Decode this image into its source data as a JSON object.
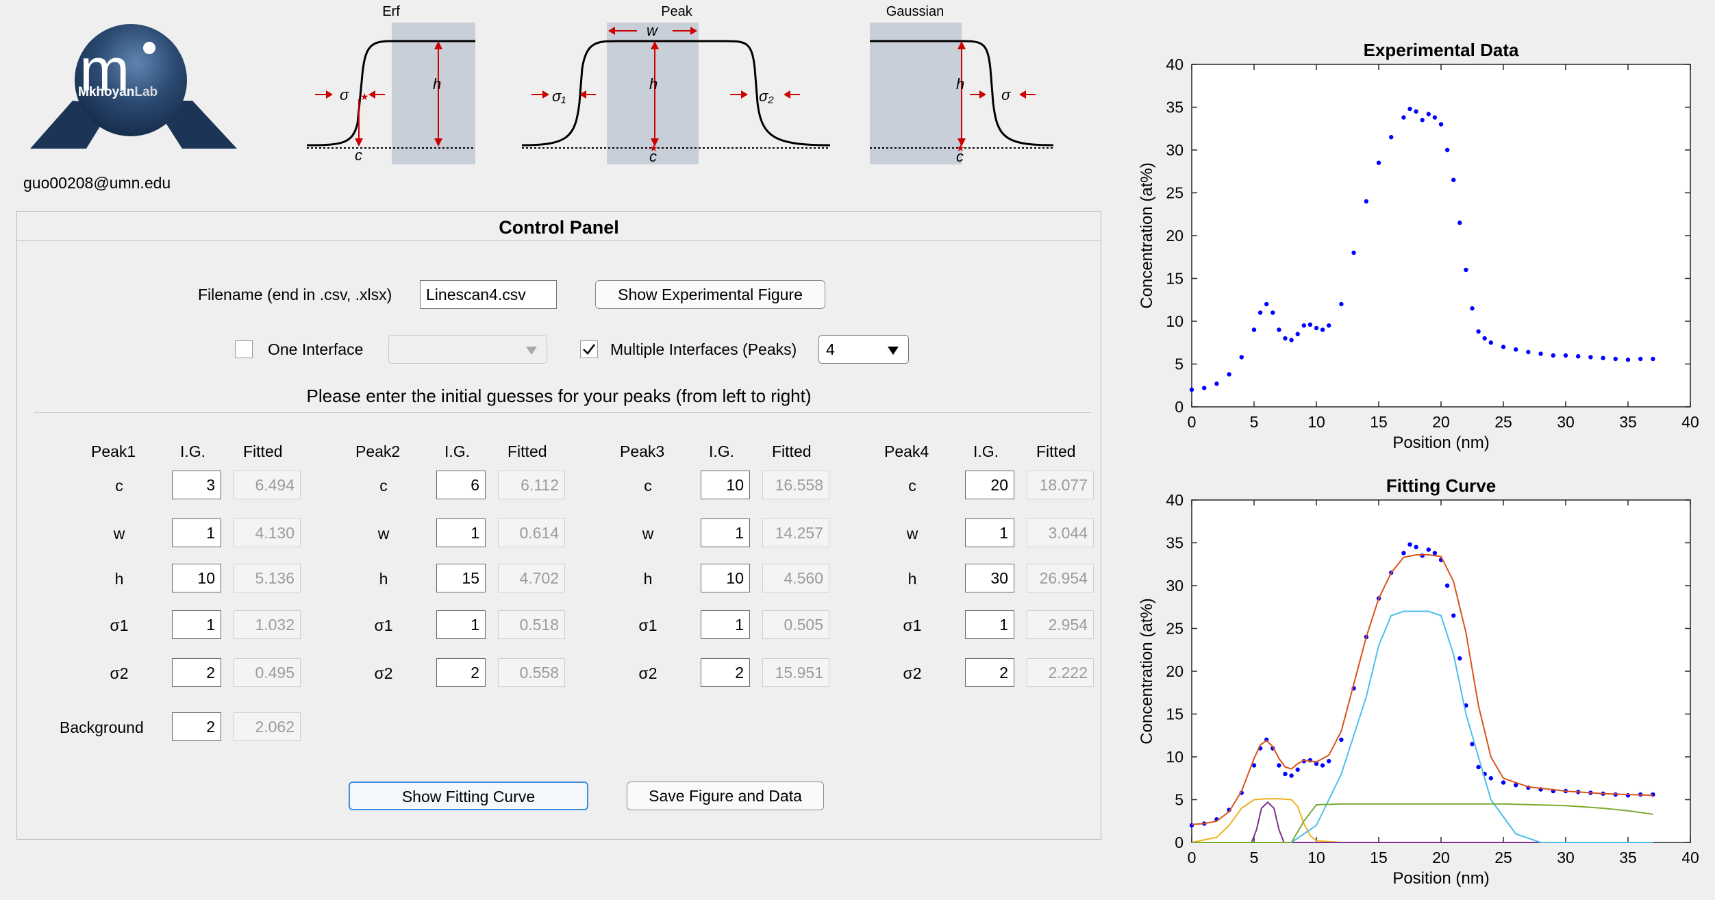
{
  "header": {
    "logo_text_m": "m",
    "logo_text_mkhoyan": "Mkhoyan",
    "logo_text_lab": "Lab",
    "email": "guo00208@umn.edu"
  },
  "diagrams": {
    "erf": {
      "title": "Erf",
      "labels": [
        "σ",
        "h",
        "c"
      ]
    },
    "peak": {
      "title": "Peak",
      "labels": [
        "w",
        "σ₁",
        "h",
        "σ₂",
        "c"
      ]
    },
    "gaussian": {
      "title": "Gaussian",
      "labels": [
        "h",
        "σ",
        "c"
      ]
    }
  },
  "panel": {
    "title": "Control Panel",
    "filename_label": "Filename (end in .csv, .xlsx)",
    "filename_value": "Linescan4.csv",
    "show_experimental_button": "Show Experimental Figure",
    "one_interface_label": "One Interface",
    "one_interface_checked": false,
    "multiple_interfaces_label": "Multiple Interfaces (Peaks)",
    "multiple_interfaces_checked": true,
    "peaks_count": "4",
    "instructions": "Please enter the initial guesses for your peaks (from left to right)",
    "col_ig": "I.G.",
    "col_fitted": "Fitted",
    "param_labels": [
      "c",
      "w",
      "h",
      "σ1",
      "σ2"
    ],
    "peaks": [
      {
        "name": "Peak1",
        "ig": [
          "3",
          "1",
          "10",
          "1",
          "2"
        ],
        "fitted": [
          "6.494",
          "4.130",
          "5.136",
          "1.032",
          "0.495"
        ]
      },
      {
        "name": "Peak2",
        "ig": [
          "6",
          "1",
          "15",
          "1",
          "2"
        ],
        "fitted": [
          "6.112",
          "0.614",
          "4.702",
          "0.518",
          "0.558"
        ]
      },
      {
        "name": "Peak3",
        "ig": [
          "10",
          "1",
          "10",
          "1",
          "2"
        ],
        "fitted": [
          "16.558",
          "14.257",
          "4.560",
          "0.505",
          "15.951"
        ]
      },
      {
        "name": "Peak4",
        "ig": [
          "20",
          "1",
          "30",
          "1",
          "2"
        ],
        "fitted": [
          "18.077",
          "3.044",
          "26.954",
          "2.954",
          "2.222"
        ]
      }
    ],
    "background_label": "Background",
    "background_ig": "2",
    "background_fitted": "2.062",
    "show_fitting_button": "Show Fitting Curve",
    "save_button": "Save Figure and Data"
  },
  "chart_data": [
    {
      "type": "scatter",
      "title": "Experimental Data",
      "xlabel": "Position (nm)",
      "ylabel": "Concentration (at%)",
      "xlim": [
        0,
        40
      ],
      "ylim": [
        0,
        40
      ],
      "xticks": [
        0,
        5,
        10,
        15,
        20,
        25,
        30,
        35,
        40
      ],
      "yticks": [
        0,
        5,
        10,
        15,
        20,
        25,
        30,
        35,
        40
      ],
      "series": [
        {
          "color": "#0000ff",
          "marker": "dot",
          "x": [
            0,
            1,
            2,
            3,
            4,
            5,
            5.5,
            6,
            6.5,
            7,
            7.5,
            8,
            8.5,
            9,
            9.5,
            10,
            10.5,
            11,
            12,
            13,
            14,
            15,
            16,
            17,
            17.5,
            18,
            18.5,
            19,
            19.5,
            20,
            20.5,
            21,
            21.5,
            22,
            22.5,
            23,
            23.5,
            24,
            25,
            26,
            27,
            28,
            29,
            30,
            31,
            32,
            33,
            34,
            35,
            36,
            37
          ],
          "y": [
            2,
            2.2,
            2.7,
            3.8,
            5.8,
            9,
            11,
            12,
            11,
            9,
            8,
            7.8,
            8.5,
            9.5,
            9.6,
            9.2,
            9.0,
            9.5,
            12,
            18,
            24,
            28.5,
            31.5,
            33.8,
            34.8,
            34.5,
            33.5,
            34.2,
            33.8,
            33,
            30,
            26.5,
            21.5,
            16,
            11.5,
            8.8,
            8,
            7.5,
            7,
            6.7,
            6.4,
            6.2,
            6.0,
            6.0,
            5.9,
            5.8,
            5.7,
            5.6,
            5.5,
            5.6,
            5.6
          ]
        }
      ]
    },
    {
      "type": "line",
      "title": "Fitting Curve",
      "xlabel": "Position (nm)",
      "ylabel": "Concentration (at%)",
      "xlim": [
        0,
        40
      ],
      "ylim": [
        0,
        40
      ],
      "xticks": [
        0,
        5,
        10,
        15,
        20,
        25,
        30,
        35,
        40
      ],
      "yticks": [
        0,
        5,
        10,
        15,
        20,
        25,
        30,
        35,
        40
      ],
      "series": [
        {
          "color": "#0000ff",
          "marker": "dot",
          "x": [
            0,
            1,
            2,
            3,
            4,
            5,
            5.5,
            6,
            6.5,
            7,
            7.5,
            8,
            8.5,
            9,
            9.5,
            10,
            10.5,
            11,
            12,
            13,
            14,
            15,
            16,
            17,
            17.5,
            18,
            18.5,
            19,
            19.5,
            20,
            20.5,
            21,
            21.5,
            22,
            22.5,
            23,
            23.5,
            24,
            25,
            26,
            27,
            28,
            29,
            30,
            31,
            32,
            33,
            34,
            35,
            36,
            37
          ],
          "y": [
            2,
            2.2,
            2.7,
            3.8,
            5.8,
            9,
            11,
            12,
            11,
            9,
            8,
            7.8,
            8.5,
            9.5,
            9.6,
            9.2,
            9.0,
            9.5,
            12,
            18,
            24,
            28.5,
            31.5,
            33.8,
            34.8,
            34.5,
            33.5,
            34.2,
            33.8,
            33,
            30,
            26.5,
            21.5,
            16,
            11.5,
            8.8,
            8,
            7.5,
            7,
            6.7,
            6.4,
            6.2,
            6.0,
            6.0,
            5.9,
            5.8,
            5.7,
            5.6,
            5.5,
            5.6,
            5.6
          ]
        },
        {
          "color": "#d95319",
          "x": [
            0,
            1,
            2,
            3,
            4,
            5,
            5.5,
            6,
            6.5,
            7,
            7.5,
            8,
            8.5,
            9,
            10,
            11,
            12,
            13,
            14,
            15,
            16,
            17,
            18,
            19,
            20,
            21,
            22,
            23,
            24,
            25,
            27,
            30,
            33,
            35,
            37
          ],
          "y": [
            2.1,
            2.2,
            2.5,
            3.6,
            6.0,
            9.8,
            11.4,
            11.9,
            11.2,
            9.8,
            8.8,
            8.6,
            9.2,
            9.6,
            9.4,
            10.2,
            13,
            18.5,
            24,
            28.5,
            31.5,
            33.3,
            33.6,
            33.6,
            33.4,
            30.5,
            24.5,
            16,
            10,
            7.5,
            6.5,
            6.0,
            5.7,
            5.6,
            5.5
          ]
        },
        {
          "color": "#edb120",
          "x": [
            0,
            2,
            3,
            4,
            5,
            6,
            7,
            8,
            8.5,
            9,
            9.5,
            10,
            12,
            37
          ],
          "y": [
            0,
            0.6,
            2,
            4,
            5,
            5.1,
            5.1,
            5.0,
            4.2,
            2.2,
            0.8,
            0.2,
            0,
            0
          ]
        },
        {
          "color": "#7e2f8e",
          "x": [
            0,
            4.8,
            5.2,
            5.6,
            6.1,
            6.6,
            7.0,
            7.4,
            37
          ],
          "y": [
            0,
            0,
            1.5,
            4.0,
            4.7,
            4.0,
            1.5,
            0,
            0
          ]
        },
        {
          "color": "#4dbeee",
          "x": [
            0,
            8,
            10,
            12,
            14,
            15,
            16,
            17,
            18,
            19,
            20,
            21,
            22,
            24,
            26,
            28,
            37
          ],
          "y": [
            0,
            0,
            2,
            8,
            17,
            23,
            26.5,
            27,
            27,
            27,
            26.5,
            22,
            15,
            5,
            1,
            0,
            0
          ]
        },
        {
          "color": "#77ac30",
          "x": [
            0,
            8,
            9,
            10,
            12,
            15,
            20,
            25,
            30,
            33,
            35,
            37
          ],
          "y": [
            0,
            0,
            2.5,
            4.4,
            4.5,
            4.5,
            4.5,
            4.5,
            4.3,
            4.0,
            3.7,
            3.3
          ]
        }
      ]
    }
  ]
}
